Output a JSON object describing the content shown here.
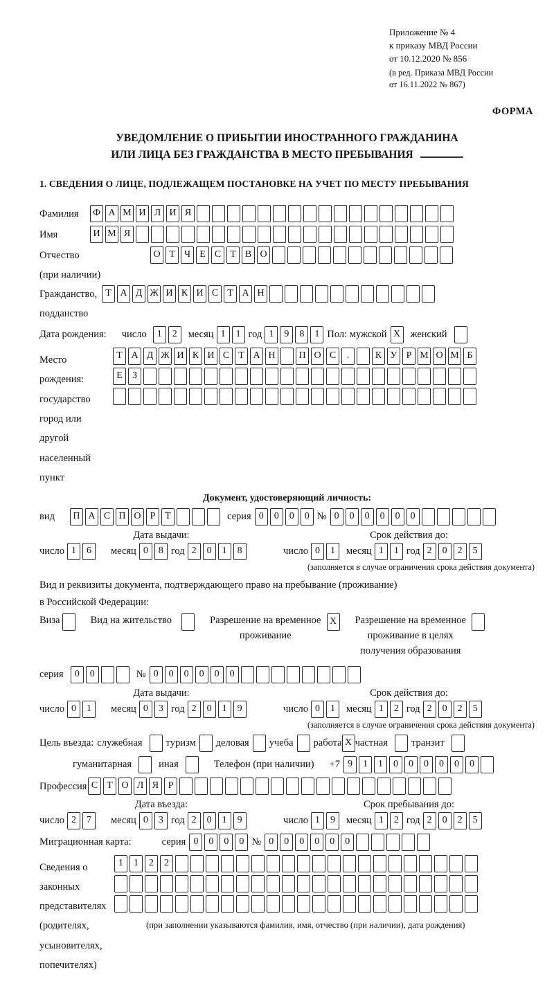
{
  "header": {
    "appendix_lines": [
      "Приложение № 4",
      "к приказу МВД России",
      "от 10.12.2020 № 856"
    ],
    "amendment_lines": [
      "(в ред. Приказа МВД России",
      "от 16.11.2022 № 867)"
    ],
    "form_label": "ФОРМА"
  },
  "title": {
    "line1": "УВЕДОМЛЕНИЕ О ПРИБЫТИИ ИНОСТРАННОГО ГРАЖДАНИНА",
    "line2": "ИЛИ ЛИЦА БЕЗ ГРАЖДАНСТВА В МЕСТО ПРЕБЫВАНИЯ"
  },
  "section1_heading": "1. СВЕДЕНИЯ О ЛИЦЕ, ПОДЛЕЖАЩЕМ ПОСТАНОВКЕ НА УЧЕТ ПО МЕСТУ ПРЕБЫВАНИЯ",
  "surname": {
    "label": "Фамилия",
    "boxes": {
      "chars": "ФАМИЛИЯ",
      "total": 24
    }
  },
  "name": {
    "label": "Имя",
    "boxes": {
      "chars": "ИМЯ",
      "total": 24
    }
  },
  "patronymic": {
    "label": "Отчество",
    "note": "(при наличии)",
    "boxes": {
      "chars": "ОТЧЕСТВО",
      "total": 20
    }
  },
  "citizenship": {
    "label_line1": "Гражданство,",
    "label_line2": "подданство",
    "boxes": {
      "chars": "ТАДЖИКИСТАН",
      "total": 22
    }
  },
  "birth_date": {
    "label": "Дата рождения:",
    "day_label": "число",
    "day": {
      "chars": "12",
      "total": 2
    },
    "month_label": "месяц",
    "month": {
      "chars": "11",
      "total": 2
    },
    "year_label": "год",
    "year": {
      "chars": "1981",
      "total": 4
    },
    "sex_label": "Пол: мужской",
    "male_box": "X",
    "female_label": "женский",
    "female_box": ""
  },
  "birth_place": {
    "label_lines": [
      "Место рождения:",
      "государство",
      "город или другой",
      "населенный пункт"
    ],
    "row1": {
      "chars": "ТАДЖИКИСТАН ПОС. КУРМОМБ",
      "total": 24
    },
    "row2": {
      "chars": "ЕЗ",
      "total": 24
    },
    "row3": {
      "chars": "",
      "total": 24
    }
  },
  "identity_doc": {
    "heading": "Документ, удостоверяющий личность:",
    "type_label": "вид",
    "type_boxes": {
      "chars": "ПАСПОРТ",
      "total": 10
    },
    "series_label": "серия",
    "series_boxes": {
      "chars": "0000",
      "total": 4
    },
    "number_label": "№",
    "number_boxes": {
      "chars": "000000",
      "total": 11
    },
    "issue_heading": "Дата выдачи:",
    "issue": {
      "day_label": "число",
      "day": {
        "chars": "16",
        "total": 2
      },
      "month_label": "месяц",
      "month": {
        "chars": "08",
        "total": 2
      },
      "year_label": "год",
      "year": {
        "chars": "2018",
        "total": 4
      }
    },
    "valid_heading": "Срок действия до:",
    "valid": {
      "day_label": "число",
      "day": {
        "chars": "01",
        "total": 2
      },
      "month_label": "месяц",
      "month": {
        "chars": "11",
        "total": 2
      },
      "year_label": "год",
      "year": {
        "chars": "2025",
        "total": 4
      }
    },
    "valid_note": "(заполняется в случае ограничения срока действия документа)"
  },
  "residence_doc": {
    "intro_line1": "Вид и реквизиты документа, подтверждающего право на пребывание (проживание)",
    "intro_line2": "в Российской Федерации:",
    "visa_label": "Виза",
    "visa_box": "",
    "permit_label": "Вид на жительство",
    "permit_box": "",
    "temp_permit_lines": [
      "Разрешение на временное",
      "проживание"
    ],
    "temp_permit_box": "X",
    "edu_permit_lines": [
      "Разрешение на временное",
      "проживание в целях",
      "получения образования"
    ],
    "edu_permit_box": "",
    "series_label": "серия",
    "series_boxes": {
      "chars": "00",
      "total": 4
    },
    "number_label": "№",
    "number_boxes": {
      "chars": "000000",
      "total": 14
    },
    "issue_heading": "Дата выдачи:",
    "issue": {
      "day_label": "число",
      "day": {
        "chars": "01",
        "total": 2
      },
      "month_label": "месяц",
      "month": {
        "chars": "03",
        "total": 2
      },
      "year_label": "год",
      "year": {
        "chars": "2019",
        "total": 4
      }
    },
    "valid_heading": "Срок действия до:",
    "valid": {
      "day_label": "число",
      "day": {
        "chars": "01",
        "total": 2
      },
      "month_label": "месяц",
      "month": {
        "chars": "12",
        "total": 2
      },
      "year_label": "год",
      "year": {
        "chars": "2025",
        "total": 4
      }
    },
    "valid_note": "(заполняется в случае ограничения срока действия документа)"
  },
  "purpose": {
    "label": "Цель въезда:",
    "options_line1": [
      {
        "label": "служебная",
        "box": ""
      },
      {
        "label": "туризм",
        "box": ""
      },
      {
        "label": "деловая",
        "box": ""
      },
      {
        "label": "учеба",
        "box": ""
      },
      {
        "label": "работа",
        "box": "X"
      },
      {
        "label": "частная",
        "box": ""
      },
      {
        "label": "транзит",
        "box": ""
      }
    ],
    "options_line2": [
      {
        "label": "гуманитарная",
        "box": ""
      },
      {
        "label": "иная",
        "box": ""
      }
    ],
    "phone_label": "Телефон (при наличии)",
    "phone_prefix": "+7",
    "phone_boxes": {
      "chars": "911000000",
      "total": 10
    }
  },
  "profession": {
    "label": "Профессия",
    "boxes": {
      "chars": "СТОЛЯР",
      "total": 24
    }
  },
  "entry": {
    "date_heading": "Дата въезда:",
    "date": {
      "day_label": "число",
      "day": {
        "chars": "27",
        "total": 2
      },
      "month_label": "месяц",
      "month": {
        "chars": "03",
        "total": 2
      },
      "year_label": "год",
      "year": {
        "chars": "2019",
        "total": 4
      }
    },
    "stay_heading": "Срок пребывания до:",
    "stay": {
      "day_label": "число",
      "day": {
        "chars": "19",
        "total": 2
      },
      "month_label": "месяц",
      "month": {
        "chars": "12",
        "total": 2
      },
      "year_label": "год",
      "year": {
        "chars": "2025",
        "total": 4
      }
    }
  },
  "migration_card": {
    "label": "Миграционная карта:",
    "series_label": "серия",
    "series_boxes": {
      "chars": "0000",
      "total": 4
    },
    "number_label": "№",
    "number_boxes": {
      "chars": "000000",
      "total": 11
    }
  },
  "representatives": {
    "label_lines": [
      "Сведения о",
      "законных",
      "представителях",
      "(родителях,",
      "усыновителях,",
      "попечителях)"
    ],
    "row1": {
      "chars": "1122",
      "total": 24
    },
    "row2": {
      "chars": "",
      "total": 24
    },
    "row3": {
      "chars": "",
      "total": 24
    },
    "note": "(при заполнении указываются фамилия, имя, отчество (при наличии), дата рождения)"
  }
}
